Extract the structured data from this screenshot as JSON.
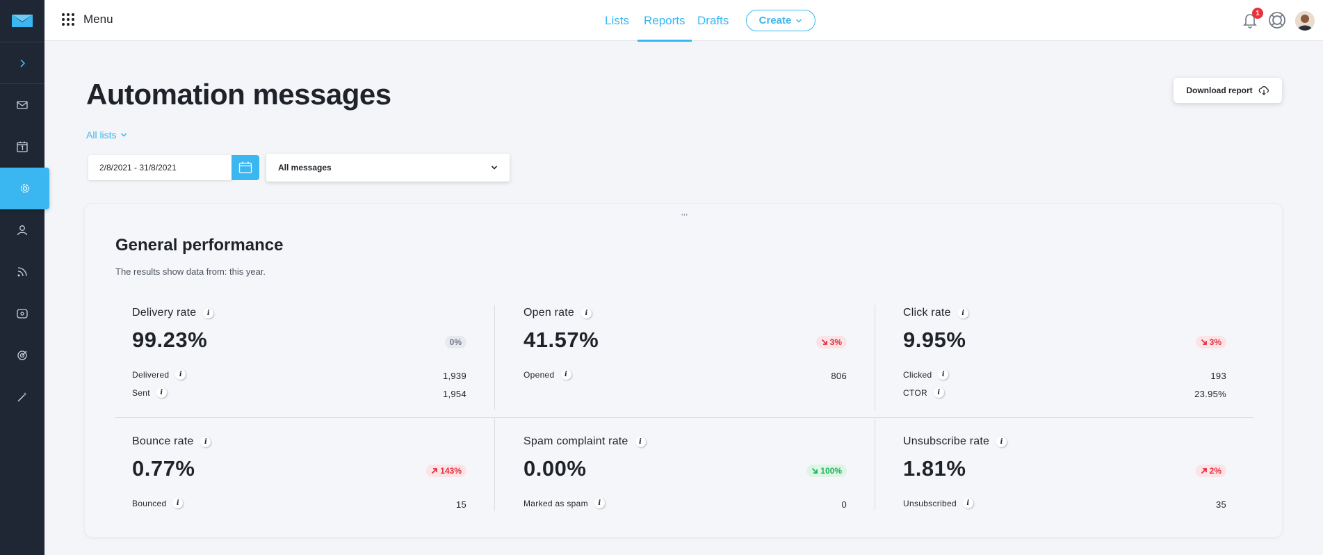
{
  "topbar": {
    "menu_label": "Menu",
    "tabs": [
      {
        "label": "Lists"
      },
      {
        "label": "Reports"
      },
      {
        "label": "Drafts"
      }
    ],
    "create_label": "Create",
    "notification_count": "1"
  },
  "page": {
    "title": "Automation messages",
    "download_label": "Download report",
    "all_lists_label": "All lists",
    "date_range": "2/8/2021 - 31/8/2021",
    "message_filter": "All messages"
  },
  "performance": {
    "title": "General performance",
    "subtitle": "The results show data from: this year.",
    "drag_handle": "'''",
    "metrics": [
      {
        "name": "Delivery rate",
        "value": "99.23%",
        "change": "0%",
        "trend": "neutral",
        "rows": [
          {
            "label": "Delivered",
            "value": "1,939"
          },
          {
            "label": "Sent",
            "value": "1,954"
          }
        ]
      },
      {
        "name": "Open rate",
        "value": "41.57%",
        "change": "3%",
        "trend": "down-bad",
        "rows": [
          {
            "label": "Opened",
            "value": "806"
          }
        ]
      },
      {
        "name": "Click rate",
        "value": "9.95%",
        "change": "3%",
        "trend": "down-bad",
        "rows": [
          {
            "label": "Clicked",
            "value": "193"
          },
          {
            "label": "CTOR",
            "value": "23.95%"
          }
        ]
      },
      {
        "name": "Bounce rate",
        "value": "0.77%",
        "change": "143%",
        "trend": "up-bad",
        "rows": [
          {
            "label": "Bounced",
            "value": "15"
          }
        ]
      },
      {
        "name": "Spam complaint rate",
        "value": "0.00%",
        "change": "100%",
        "trend": "down-good",
        "rows": [
          {
            "label": "Marked as spam",
            "value": "0"
          }
        ]
      },
      {
        "name": "Unsubscribe rate",
        "value": "1.81%",
        "change": "2%",
        "trend": "up-bad",
        "rows": [
          {
            "label": "Unsubscribed",
            "value": "35"
          }
        ]
      }
    ]
  },
  "colors": {
    "accent": "#3ab6f0",
    "sidebar": "#1e2733",
    "bad": "#e0303f",
    "good": "#22b35e"
  }
}
